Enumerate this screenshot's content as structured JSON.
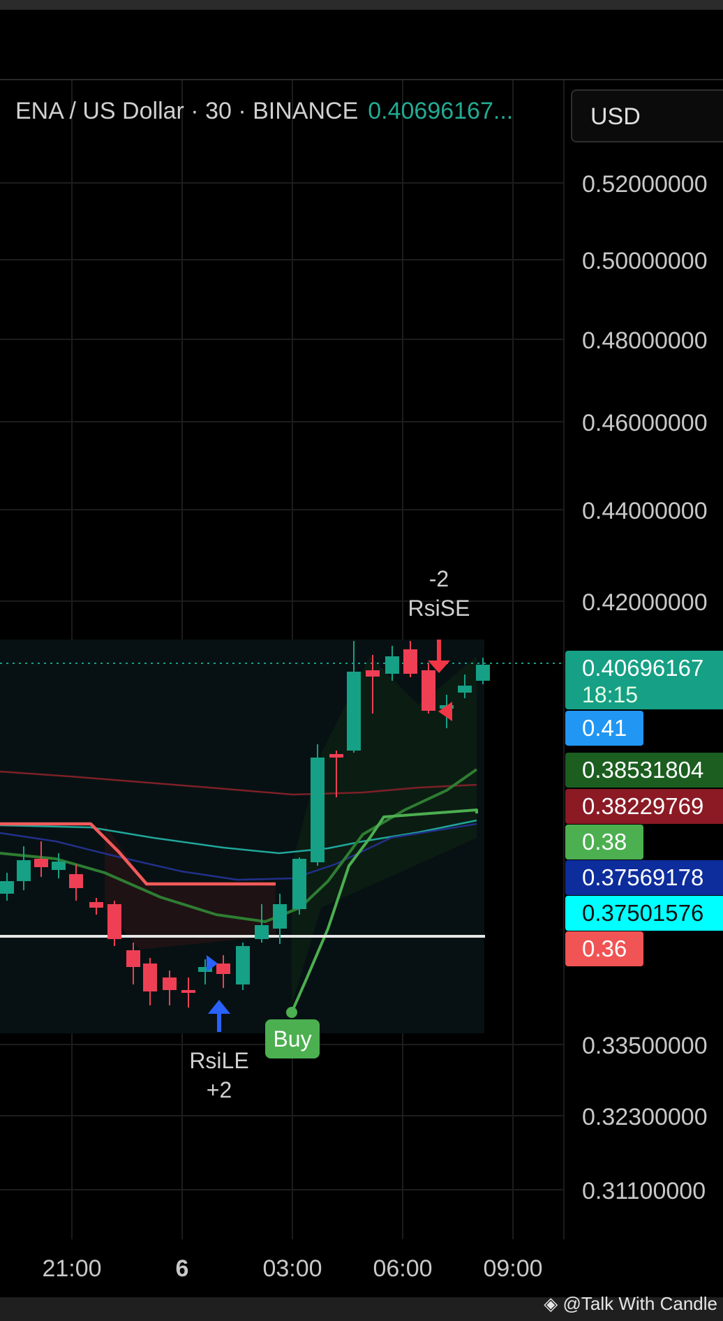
{
  "header": {
    "symbol": "ENA / US Dollar · 30 · BINANCE",
    "last_price": "0.40696167...",
    "currency": "USD"
  },
  "watermark": "@Talk With Candle",
  "colors": {
    "bull": "#16a085",
    "bear": "#ef3f55",
    "buy_green": "#4caf50",
    "rsi_le_blue": "#2962ff",
    "rsi_se_red": "#f23645",
    "white_level": "#e6e6e6"
  },
  "chart_data": {
    "type": "candlestick",
    "y_ticks": [
      {
        "label": "0.52000000",
        "value": 0.52
      },
      {
        "label": "0.50000000",
        "value": 0.5
      },
      {
        "label": "0.48000000",
        "value": 0.48
      },
      {
        "label": "0.46000000",
        "value": 0.46
      },
      {
        "label": "0.44000000",
        "value": 0.44
      },
      {
        "label": "0.42000000",
        "value": 0.42
      },
      {
        "label": "0.33500000",
        "value": 0.335
      },
      {
        "label": "0.32300000",
        "value": 0.323
      },
      {
        "label": "0.31100000",
        "value": 0.311
      }
    ],
    "x_ticks": [
      {
        "label": "21:00",
        "bold": false
      },
      {
        "label": "6",
        "bold": true
      },
      {
        "label": "03:00",
        "bold": false
      },
      {
        "label": "06:00",
        "bold": false
      },
      {
        "label": "09:00",
        "bold": false
      }
    ],
    "price_labels": [
      {
        "text": "0.40696167",
        "sub": "18:15",
        "color": "#16a085",
        "value": 0.40696167
      },
      {
        "text": "0.41",
        "color": "#2196f3",
        "value": 0.41
      },
      {
        "text": "0.38531804",
        "color": "#1b5e20",
        "value": 0.38531804
      },
      {
        "text": "0.38229769",
        "color": "#8b1a25",
        "value": 0.38229769
      },
      {
        "text": "0.38",
        "color": "#4caf50",
        "value": 0.38
      },
      {
        "text": "0.37569178",
        "color": "#0d2d9c",
        "value": 0.37569178
      },
      {
        "text": "0.37501576",
        "color": "#00ffff",
        "value": 0.37501576
      },
      {
        "text": "0.36",
        "color": "#f05454",
        "value": 0.36
      }
    ],
    "signals": [
      {
        "type": "RsiLE",
        "line1": "RsiLE",
        "line2": "+2"
      },
      {
        "type": "RsiSE",
        "line1": "-2",
        "line2": "RsiSE"
      },
      {
        "type": "Buy",
        "line1": "Buy"
      }
    ]
  }
}
